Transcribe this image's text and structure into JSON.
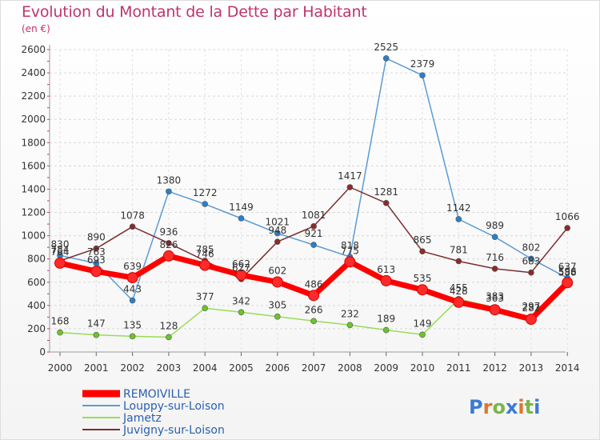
{
  "header": {
    "title": "Evolution du Montant de la Dette par Habitant",
    "unit": "(en €)"
  },
  "brand": {
    "name": "Proxiti"
  },
  "chart_data": {
    "type": "line",
    "title": "Evolution du Montant de la Dette par Habitant",
    "subtitle": "(en €)",
    "x": [
      2000,
      2001,
      2002,
      2003,
      2004,
      2005,
      2006,
      2007,
      2008,
      2009,
      2010,
      2011,
      2012,
      2013,
      2014
    ],
    "ylim": [
      0,
      2600
    ],
    "yticks": [
      0,
      200,
      400,
      600,
      800,
      1000,
      1200,
      1400,
      1600,
      1800,
      2000,
      2200,
      2400,
      2600
    ],
    "grid": true,
    "legend_position": "bottom-left",
    "series": [
      {
        "name": "REMOIVILLE",
        "color": "#ff0000",
        "marker": "#ff2a2a",
        "emphasis": true,
        "values": [
          764,
          693,
          639,
          826,
          746,
          662,
          602,
          486,
          775,
          613,
          535,
          428,
          363,
          282,
          596
        ]
      },
      {
        "name": "Louppy-sur-Loison",
        "color": "#5a9bd5",
        "marker": "#2b7fc9",
        "emphasis": false,
        "values": [
          830,
          763,
          443,
          1380,
          1272,
          1149,
          1021,
          921,
          818,
          2525,
          2379,
          1142,
          989,
          802,
          637
        ]
      },
      {
        "name": "Jametz",
        "color": "#99dd55",
        "marker": "#6cc42a",
        "emphasis": false,
        "values": [
          168,
          147,
          135,
          128,
          377,
          342,
          305,
          266,
          232,
          189,
          149,
          455,
          383,
          297,
          588
        ]
      },
      {
        "name": "Juvigny-sur-Loison",
        "color": "#7a2e2e",
        "marker": "#8b2a2a",
        "emphasis": false,
        "values": [
          784,
          890,
          1078,
          936,
          785,
          627,
          948,
          1081,
          1417,
          1281,
          865,
          781,
          716,
          683,
          1066
        ]
      }
    ]
  }
}
